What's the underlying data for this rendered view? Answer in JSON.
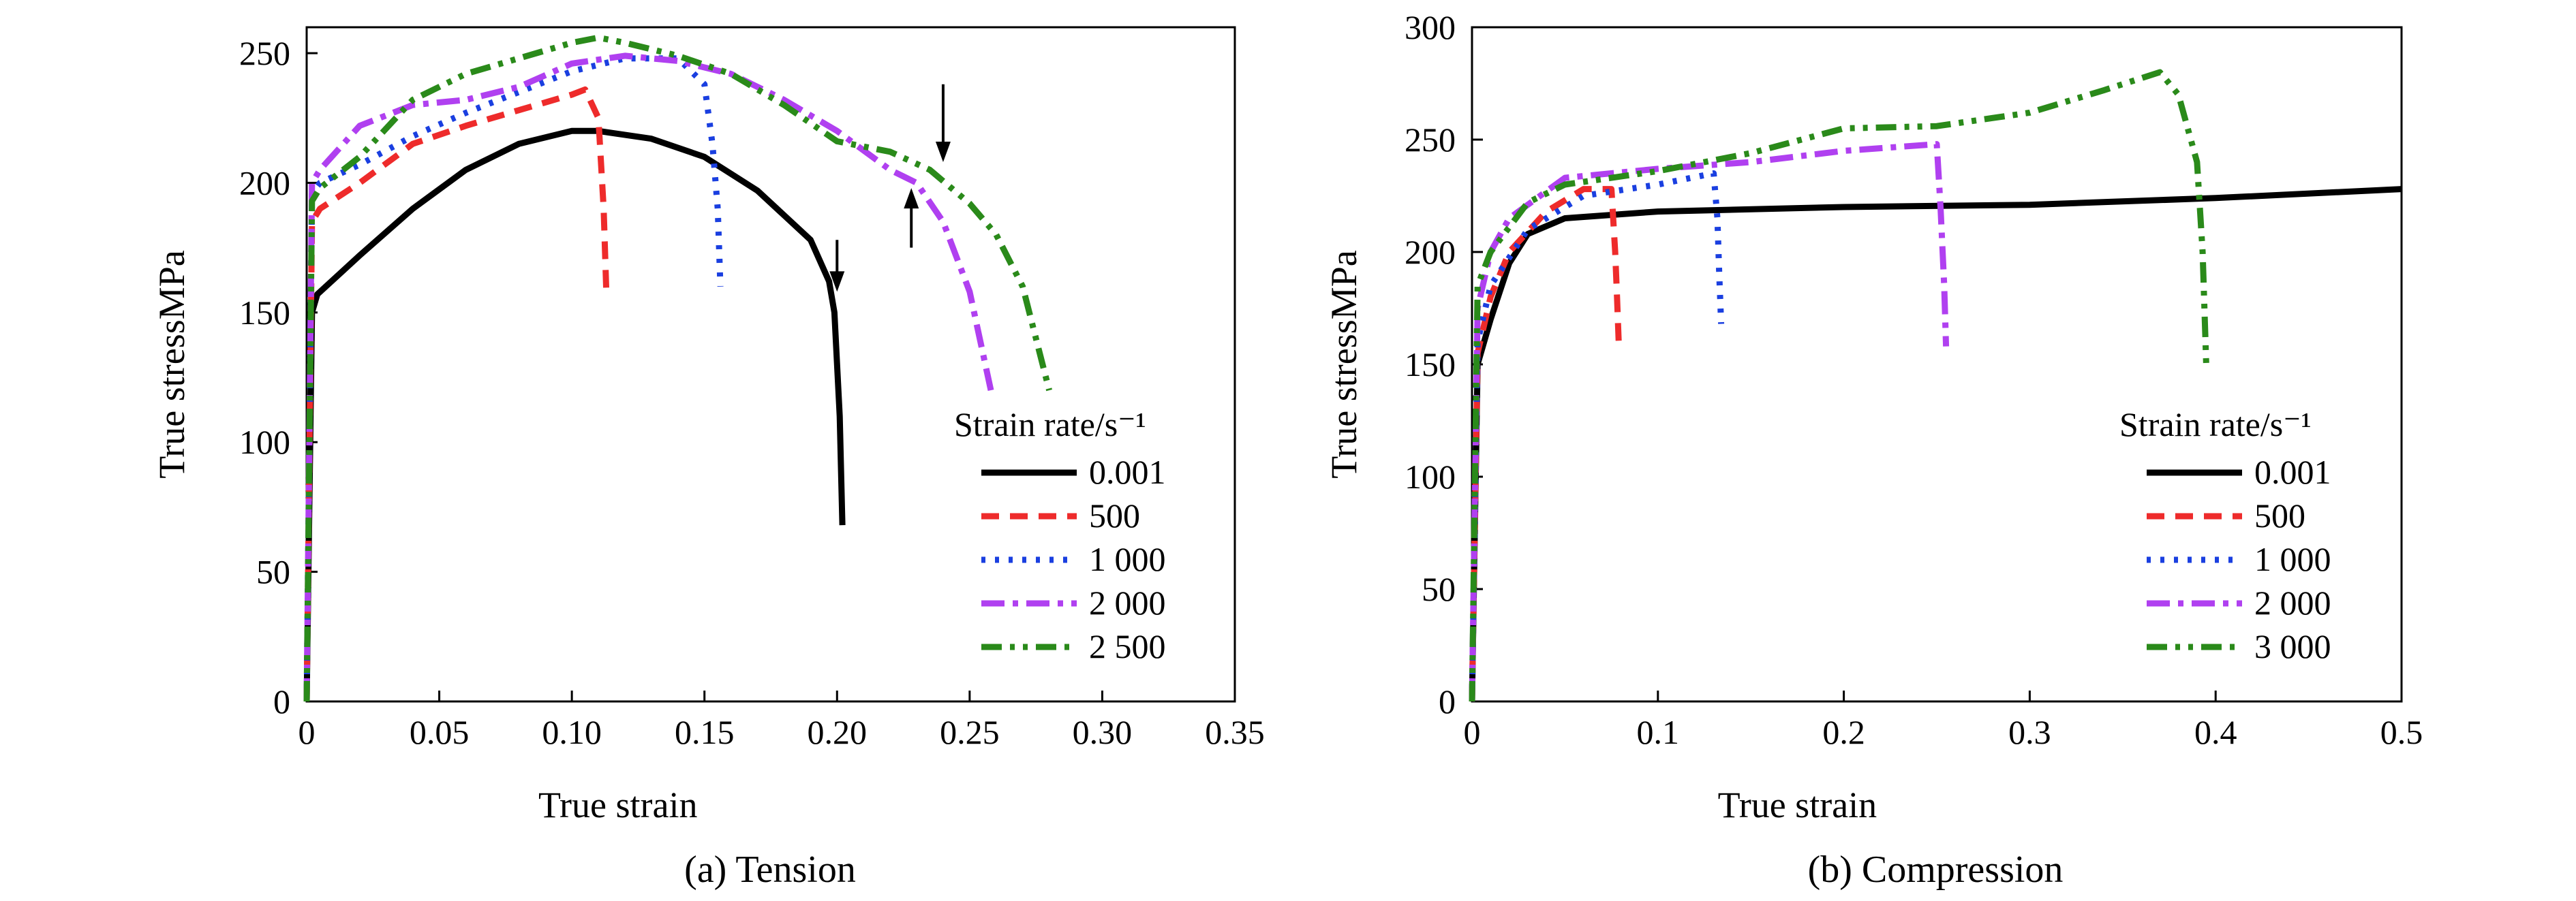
{
  "colors": {
    "black": "#000000",
    "red": "#ee2b2b",
    "blue": "#1a3fe0",
    "purple": "#b040f0",
    "green": "#2a8a1a"
  },
  "chart_data": [
    {
      "type": "line",
      "caption": "(a) Tension",
      "xlabel": "True strain",
      "ylabel": "True stressMPa",
      "xlim": [
        0,
        0.35
      ],
      "ylim": [
        0,
        260
      ],
      "xticks": [
        "0",
        "0.05",
        "0.10",
        "0.15",
        "0.20",
        "0.25",
        "0.30",
        "0.35"
      ],
      "xtick_values": [
        0,
        0.05,
        0.1,
        0.15,
        0.2,
        0.25,
        0.3,
        0.35
      ],
      "yticks": [
        "0",
        "50",
        "100",
        "150",
        "200",
        "250"
      ],
      "ytick_values": [
        0,
        50,
        100,
        150,
        200,
        250
      ],
      "grid": false,
      "legend_position": "lower-right",
      "legend_title": "Strain rate/s⁻¹",
      "series": [
        {
          "name": "0.001",
          "color": "#000000",
          "dash": "solid",
          "points": [
            [
              0,
              0
            ],
            [
              0.002,
              150
            ],
            [
              0.004,
              157
            ],
            [
              0.02,
              172
            ],
            [
              0.04,
              190
            ],
            [
              0.06,
              205
            ],
            [
              0.08,
              215
            ],
            [
              0.1,
              220
            ],
            [
              0.11,
              220
            ],
            [
              0.13,
              217
            ],
            [
              0.15,
              210
            ],
            [
              0.17,
              197
            ],
            [
              0.19,
              178
            ],
            [
              0.197,
              162
            ],
            [
              0.199,
              150
            ],
            [
              0.201,
              110
            ],
            [
              0.202,
              68
            ]
          ]
        },
        {
          "name": "500",
          "color": "#ee2b2b",
          "dash": "dashed",
          "points": [
            [
              0,
              0
            ],
            [
              0.002,
              185
            ],
            [
              0.005,
              190
            ],
            [
              0.02,
              200
            ],
            [
              0.04,
              215
            ],
            [
              0.06,
              222
            ],
            [
              0.08,
              228
            ],
            [
              0.1,
              234
            ],
            [
              0.105,
              236
            ],
            [
              0.11,
              225
            ],
            [
              0.112,
              190
            ],
            [
              0.113,
              158
            ]
          ]
        },
        {
          "name": "1 000",
          "color": "#1a3fe0",
          "dash": "dotted",
          "points": [
            [
              0,
              0
            ],
            [
              0.002,
              196
            ],
            [
              0.005,
              200
            ],
            [
              0.02,
              207
            ],
            [
              0.04,
              218
            ],
            [
              0.06,
              227
            ],
            [
              0.08,
              235
            ],
            [
              0.1,
              243
            ],
            [
              0.12,
              248
            ],
            [
              0.14,
              248
            ],
            [
              0.15,
              238
            ],
            [
              0.153,
              215
            ],
            [
              0.155,
              190
            ],
            [
              0.156,
              160
            ]
          ]
        },
        {
          "name": "2 000",
          "color": "#b040f0",
          "dash": "dashdot",
          "points": [
            [
              0,
              0
            ],
            [
              0.002,
              200
            ],
            [
              0.005,
              205
            ],
            [
              0.02,
              222
            ],
            [
              0.04,
              230
            ],
            [
              0.06,
              232
            ],
            [
              0.08,
              237
            ],
            [
              0.1,
              246
            ],
            [
              0.12,
              249
            ],
            [
              0.14,
              247
            ],
            [
              0.16,
              242
            ],
            [
              0.18,
              232
            ],
            [
              0.2,
              220
            ],
            [
              0.22,
              205
            ],
            [
              0.23,
              200
            ],
            [
              0.24,
              185
            ],
            [
              0.25,
              158
            ],
            [
              0.258,
              120
            ]
          ]
        },
        {
          "name": "2 500",
          "color": "#2a8a1a",
          "dash": "dashdotdot",
          "points": [
            [
              0,
              0
            ],
            [
              0.002,
              193
            ],
            [
              0.005,
              198
            ],
            [
              0.02,
              210
            ],
            [
              0.04,
              232
            ],
            [
              0.06,
              242
            ],
            [
              0.08,
              248
            ],
            [
              0.1,
              254
            ],
            [
              0.11,
              256
            ],
            [
              0.12,
              254
            ],
            [
              0.14,
              249
            ],
            [
              0.16,
              242
            ],
            [
              0.18,
              230
            ],
            [
              0.2,
              216
            ],
            [
              0.22,
              212
            ],
            [
              0.235,
              205
            ],
            [
              0.25,
              192
            ],
            [
              0.26,
              180
            ],
            [
              0.27,
              160
            ],
            [
              0.28,
              120
            ]
          ]
        }
      ],
      "arrows": [
        {
          "x": 0.2,
          "y_from": 178,
          "y_to": 158,
          "direction": "down"
        },
        {
          "x": 0.228,
          "y_from": 175,
          "y_to": 198,
          "direction": "up"
        },
        {
          "x": 0.24,
          "y_from": 238,
          "y_to": 208,
          "direction": "down"
        }
      ]
    },
    {
      "type": "line",
      "caption": "(b) Compression",
      "xlabel": "True strain",
      "ylabel": "True stressMPa",
      "xlim": [
        0,
        0.5
      ],
      "ylim": [
        0,
        300
      ],
      "xticks": [
        "0",
        "0.1",
        "0.2",
        "0.3",
        "0.4",
        "0.5"
      ],
      "xtick_values": [
        0,
        0.1,
        0.2,
        0.3,
        0.4,
        0.5
      ],
      "yticks": [
        "0",
        "50",
        "100",
        "150",
        "200",
        "250",
        "300"
      ],
      "ytick_values": [
        0,
        50,
        100,
        150,
        200,
        250,
        300
      ],
      "grid": false,
      "legend_position": "lower-right",
      "legend_title": "Strain rate/s⁻¹",
      "series": [
        {
          "name": "0.001",
          "color": "#000000",
          "dash": "solid",
          "points": [
            [
              0,
              0
            ],
            [
              0.003,
              150
            ],
            [
              0.01,
              170
            ],
            [
              0.02,
              195
            ],
            [
              0.03,
              208
            ],
            [
              0.05,
              215
            ],
            [
              0.1,
              218
            ],
            [
              0.2,
              220
            ],
            [
              0.3,
              221
            ],
            [
              0.4,
              224
            ],
            [
              0.5,
              228
            ]
          ]
        },
        {
          "name": "500",
          "color": "#ee2b2b",
          "dash": "dashed",
          "points": [
            [
              0,
              0
            ],
            [
              0.003,
              155
            ],
            [
              0.01,
              180
            ],
            [
              0.02,
              200
            ],
            [
              0.04,
              218
            ],
            [
              0.06,
              228
            ],
            [
              0.075,
              228
            ],
            [
              0.077,
              200
            ],
            [
              0.078,
              180
            ],
            [
              0.079,
              158
            ]
          ]
        },
        {
          "name": "1 000",
          "color": "#1a3fe0",
          "dash": "dotted",
          "points": [
            [
              0,
              0
            ],
            [
              0.003,
              160
            ],
            [
              0.01,
              185
            ],
            [
              0.03,
              210
            ],
            [
              0.06,
              225
            ],
            [
              0.1,
              230
            ],
            [
              0.13,
              235
            ],
            [
              0.132,
              215
            ],
            [
              0.133,
              190
            ],
            [
              0.134,
              168
            ]
          ]
        },
        {
          "name": "2 000",
          "color": "#b040f0",
          "dash": "dashdot",
          "points": [
            [
              0,
              0
            ],
            [
              0.003,
              175
            ],
            [
              0.01,
              200
            ],
            [
              0.02,
              215
            ],
            [
              0.05,
              233
            ],
            [
              0.1,
              237
            ],
            [
              0.15,
              240
            ],
            [
              0.2,
              245
            ],
            [
              0.25,
              248
            ],
            [
              0.252,
              220
            ],
            [
              0.254,
              185
            ],
            [
              0.255,
              158
            ]
          ]
        },
        {
          "name": "3 000",
          "color": "#2a8a1a",
          "dash": "dashdotdot",
          "points": [
            [
              0,
              0
            ],
            [
              0.003,
              185
            ],
            [
              0.01,
              200
            ],
            [
              0.03,
              222
            ],
            [
              0.05,
              230
            ],
            [
              0.1,
              236
            ],
            [
              0.15,
              244
            ],
            [
              0.2,
              255
            ],
            [
              0.25,
              256
            ],
            [
              0.3,
              262
            ],
            [
              0.34,
              272
            ],
            [
              0.37,
              280
            ],
            [
              0.38,
              270
            ],
            [
              0.39,
              240
            ],
            [
              0.393,
              200
            ],
            [
              0.395,
              148
            ]
          ]
        }
      ]
    }
  ]
}
